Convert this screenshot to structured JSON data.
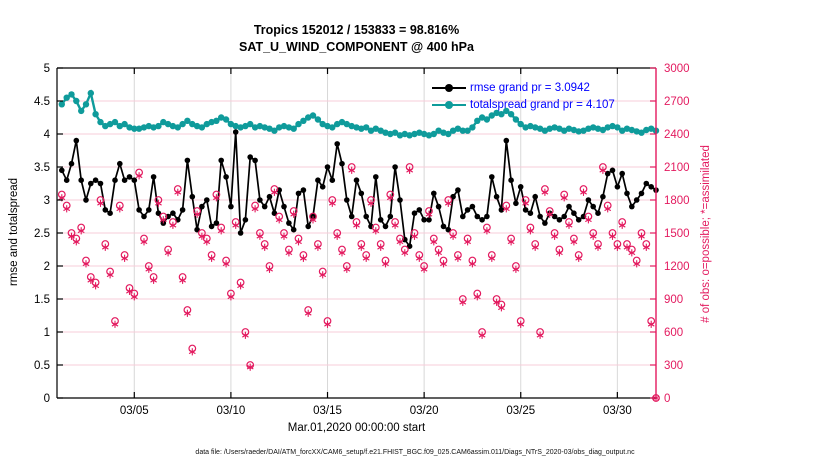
{
  "figure": {
    "title_line1": "Tropics 152012 / 153833 = 98.816%",
    "title_line2": "SAT_U_WIND_COMPONENT @ 400 hPa",
    "xlabel": "Mar.01,2020 00:00:00 start",
    "ylabel_left": "rmse and totalspread",
    "ylabel_right": "# of obs: o=possible; *=assimilated",
    "footer": "data file: /Users/raeder/DAI/ATM_forcXX/CAM6_setup/f.e21.FHIST_BGC.f09_025.CAM6assim.011/Diags_NTrS_2020-03/obs_diag_output.nc",
    "legend": [
      {
        "label": "rmse grand pr = 3.0942",
        "color": "#000000"
      },
      {
        "label": "totalspread grand pr = 4.107",
        "color": "#0f9b9b"
      }
    ],
    "colors": {
      "rmse": "#000000",
      "totalspread": "#0f9b9b",
      "obs": "#e31a5f",
      "legend_text": "#0000ff",
      "grid_h": "#f7ccd9",
      "grid_v": "#d8d8d8",
      "spine": "#000000"
    }
  },
  "chart_data": {
    "type": "line",
    "title": "Tropics 152012 / 153833 = 98.816% | SAT_U_WIND_COMPONENT @ 400 hPa",
    "x_axis": {
      "label": "Mar.01,2020 00:00:00 start",
      "range_days": [
        0,
        31
      ],
      "ticks": [
        {
          "day": 4,
          "label": "03/05"
        },
        {
          "day": 9,
          "label": "03/10"
        },
        {
          "day": 14,
          "label": "03/15"
        },
        {
          "day": 19,
          "label": "03/20"
        },
        {
          "day": 24,
          "label": "03/25"
        },
        {
          "day": 29,
          "label": "03/30"
        }
      ]
    },
    "y_left": {
      "label": "rmse and totalspread",
      "min": 0,
      "max": 5,
      "tick_step": 0.5
    },
    "y_right": {
      "label": "# of obs: o=possible; *=assimilated",
      "min": 0,
      "max": 3000,
      "tick_step": 300
    },
    "time_days": {
      "start": 0.25,
      "step": 0.25,
      "count": 124
    },
    "series": [
      {
        "name": "rmse",
        "grand_pr": 3.0942,
        "axis": "left",
        "style": "line-dot",
        "color": "#000000",
        "values": [
          3.45,
          3.3,
          3.55,
          3.9,
          3.3,
          3.0,
          3.25,
          3.3,
          3.25,
          2.85,
          2.8,
          3.3,
          3.55,
          3.3,
          3.35,
          3.3,
          2.85,
          2.75,
          2.85,
          3.35,
          2.8,
          2.65,
          2.75,
          2.8,
          2.7,
          2.85,
          3.6,
          3.05,
          2.55,
          2.9,
          3.0,
          2.6,
          2.65,
          3.6,
          3.35,
          2.9,
          4.03,
          2.5,
          2.7,
          3.65,
          3.6,
          3.0,
          2.9,
          3.05,
          2.8,
          3.15,
          2.9,
          2.65,
          2.55,
          3.1,
          3.15,
          2.6,
          2.75,
          3.3,
          3.2,
          3.5,
          3.3,
          3.85,
          3.55,
          3.0,
          2.75,
          3.3,
          3.1,
          2.75,
          2.6,
          3.35,
          2.7,
          2.6,
          2.75,
          3.5,
          3.0,
          2.4,
          2.3,
          2.8,
          2.85,
          2.7,
          2.7,
          3.1,
          2.9,
          2.6,
          2.55,
          3.05,
          3.15,
          2.75,
          2.85,
          2.9,
          2.75,
          2.7,
          2.75,
          3.35,
          3.05,
          2.85,
          3.9,
          3.3,
          2.95,
          3.2,
          2.85,
          2.8,
          3.05,
          2.75,
          2.65,
          2.8,
          2.75,
          2.7,
          2.75,
          2.9,
          2.8,
          2.7,
          2.75,
          3.0,
          2.9,
          2.8,
          3.05,
          3.4,
          3.45,
          3.2,
          3.4,
          3.1,
          2.9,
          3.0,
          3.1,
          3.25,
          3.2,
          3.15
        ]
      },
      {
        "name": "totalspread",
        "grand_pr": 4.107,
        "axis": "left",
        "style": "line-dot",
        "color": "#0f9b9b",
        "values": [
          4.45,
          4.55,
          4.6,
          4.5,
          4.35,
          4.45,
          4.62,
          4.3,
          4.18,
          4.12,
          4.15,
          4.18,
          4.12,
          4.15,
          4.1,
          4.08,
          4.08,
          4.1,
          4.12,
          4.1,
          4.12,
          4.18,
          4.15,
          4.12,
          4.1,
          4.15,
          4.2,
          4.15,
          4.12,
          4.1,
          4.15,
          4.18,
          4.2,
          4.25,
          4.22,
          4.15,
          4.12,
          4.1,
          4.12,
          4.15,
          4.1,
          4.12,
          4.1,
          4.08,
          4.05,
          4.1,
          4.12,
          4.1,
          4.08,
          4.15,
          4.2,
          4.25,
          4.28,
          4.22,
          4.15,
          4.12,
          4.1,
          4.15,
          4.18,
          4.15,
          4.12,
          4.1,
          4.08,
          4.1,
          4.05,
          4.08,
          4.05,
          4.02,
          4.0,
          4.02,
          3.98,
          4.0,
          3.98,
          4.0,
          4.02,
          4.0,
          3.98,
          4.0,
          4.05,
          4.02,
          4.0,
          4.05,
          4.08,
          4.05,
          4.05,
          4.1,
          4.2,
          4.25,
          4.22,
          4.28,
          4.32,
          4.3,
          4.35,
          4.3,
          4.22,
          4.15,
          4.1,
          4.12,
          4.1,
          4.08,
          4.05,
          4.08,
          4.1,
          4.08,
          4.05,
          4.08,
          4.06,
          4.04,
          4.05,
          4.08,
          4.1,
          4.08,
          4.06,
          4.1,
          4.12,
          4.1,
          4.05,
          4.08,
          4.06,
          4.04,
          4.02,
          4.06,
          4.08,
          4.05
        ]
      },
      {
        "name": "possible_obs",
        "axis": "right",
        "style": "open-circle",
        "color": "#e31a5f",
        "values": [
          1850,
          1750,
          1500,
          1450,
          1550,
          1250,
          1100,
          1050,
          1800,
          1400,
          1150,
          700,
          1750,
          1300,
          1000,
          950,
          2050,
          1450,
          1200,
          1100,
          1800,
          1650,
          1350,
          1600,
          1900,
          1100,
          800,
          450,
          1700,
          1500,
          1450,
          1300,
          1850,
          1550,
          1250,
          950,
          1600,
          1050,
          600,
          300,
          1750,
          1500,
          1400,
          1200,
          1900,
          1650,
          1500,
          1350,
          1700,
          1450,
          1300,
          800,
          1650,
          1400,
          1150,
          700,
          1800,
          1500,
          1350,
          1200,
          2100,
          1600,
          1400,
          1300,
          1800,
          1550,
          1400,
          1250,
          1850,
          1600,
          1450,
          1350,
          2100,
          1500,
          1300,
          1200,
          1700,
          1450,
          1350,
          1250,
          1800,
          1500,
          1300,
          900,
          1450,
          1250,
          950,
          600,
          1550,
          1300,
          900,
          850,
          1750,
          1450,
          1200,
          700,
          1800,
          1550,
          1400,
          600,
          1900,
          1700,
          1500,
          1350,
          1850,
          1600,
          1450,
          1300,
          1900,
          1650,
          1500,
          1400,
          2100,
          1750,
          1500,
          1400,
          1600,
          1400,
          1350,
          1250,
          1500,
          1400,
          700,
          0
        ]
      },
      {
        "name": "assimilated_obs",
        "axis": "right",
        "style": "asterisk",
        "color": "#e31a5f",
        "values": [
          1820,
          1720,
          1470,
          1420,
          1520,
          1220,
          1070,
          1020,
          1770,
          1370,
          1120,
          670,
          1720,
          1270,
          970,
          920,
          2020,
          1420,
          1170,
          1070,
          1770,
          1620,
          1320,
          1570,
          1870,
          1070,
          770,
          420,
          1670,
          1470,
          1420,
          1270,
          1820,
          1520,
          1220,
          920,
          1570,
          1020,
          570,
          280,
          1720,
          1470,
          1370,
          1170,
          1870,
          1620,
          1470,
          1320,
          1670,
          1420,
          1270,
          770,
          1620,
          1370,
          1120,
          670,
          1770,
          1470,
          1320,
          1170,
          2070,
          1570,
          1370,
          1270,
          1770,
          1520,
          1370,
          1220,
          1820,
          1570,
          1420,
          1320,
          2070,
          1470,
          1270,
          1170,
          1670,
          1420,
          1320,
          1220,
          1770,
          1470,
          1270,
          870,
          1420,
          1220,
          920,
          570,
          1520,
          1270,
          870,
          820,
          1720,
          1420,
          1170,
          670,
          1770,
          1520,
          1370,
          570,
          1870,
          1670,
          1470,
          1320,
          1820,
          1570,
          1420,
          1270,
          1870,
          1620,
          1470,
          1370,
          2070,
          1720,
          1470,
          1370,
          1570,
          1370,
          1320,
          1220,
          1470,
          1370,
          670,
          0
        ]
      }
    ]
  }
}
